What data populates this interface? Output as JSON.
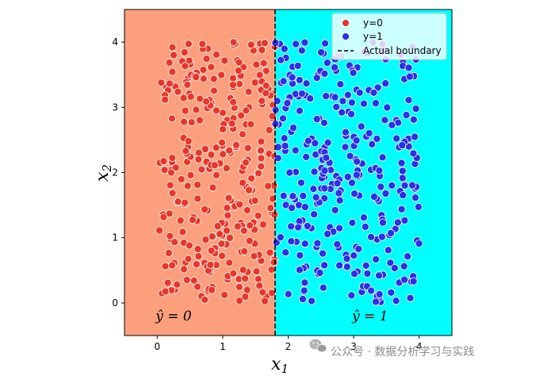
{
  "chart_data": {
    "type": "scatter",
    "title": "",
    "xlabel": "x",
    "xlabel_sub": "1",
    "ylabel": "x",
    "ylabel_sub": "2",
    "xlim": [
      -0.5,
      4.5
    ],
    "ylim": [
      -0.5,
      4.5
    ],
    "xticks": [
      0,
      1,
      2,
      3,
      4
    ],
    "yticks": [
      0,
      1,
      2,
      3,
      4
    ],
    "grid": false,
    "boundary_x": 1.8,
    "regions": [
      {
        "name": "y-hat-0",
        "from": -0.5,
        "to": 1.8,
        "color": "#fc9f7d",
        "label_prefix": "ŷ",
        "label_value": " = 0",
        "label_x": 0.25,
        "label_y": -0.27
      },
      {
        "name": "y-hat-1",
        "from": 1.8,
        "to": 4.5,
        "color": "#00ffff",
        "label_prefix": "ŷ",
        "label_value": " = 1",
        "label_x": 3.25,
        "label_y": -0.27
      }
    ],
    "series": [
      {
        "name": "y=0",
        "color": "#e8372a"
      },
      {
        "name": "y=1",
        "color": "#2f2fe6"
      }
    ],
    "boundary_label": "Actual boundary",
    "legend_position": "top-right",
    "n_points_per_class": 300
  },
  "watermark": {
    "text": "公众号 · 数据分析学习与实践"
  },
  "icons": {
    "watermark": "wechat-icon"
  }
}
